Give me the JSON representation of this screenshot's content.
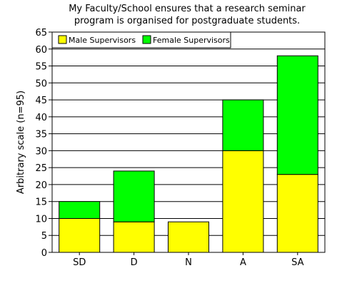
{
  "chart_data": {
    "type": "bar",
    "stacked": true,
    "title": [
      "My Faculty/School ensures that a research seminar",
      "program is organised for postgraduate students."
    ],
    "xlabel": "",
    "ylabel": "Arbitrary scale (n=95)",
    "categories": [
      "SD",
      "D",
      "N",
      "A",
      "SA"
    ],
    "series": [
      {
        "name": "Male Supervisors",
        "color": "#ffff00",
        "values": [
          10,
          9,
          9,
          30,
          23
        ]
      },
      {
        "name": "Female Supervisors",
        "color": "#00ff00",
        "values": [
          5,
          15,
          0,
          15,
          35
        ]
      }
    ],
    "ylim": [
      0,
      65
    ],
    "yticks": [
      0,
      5,
      10,
      15,
      20,
      25,
      30,
      35,
      40,
      45,
      50,
      55,
      60,
      65
    ],
    "grid": true,
    "legend": "top-left"
  }
}
